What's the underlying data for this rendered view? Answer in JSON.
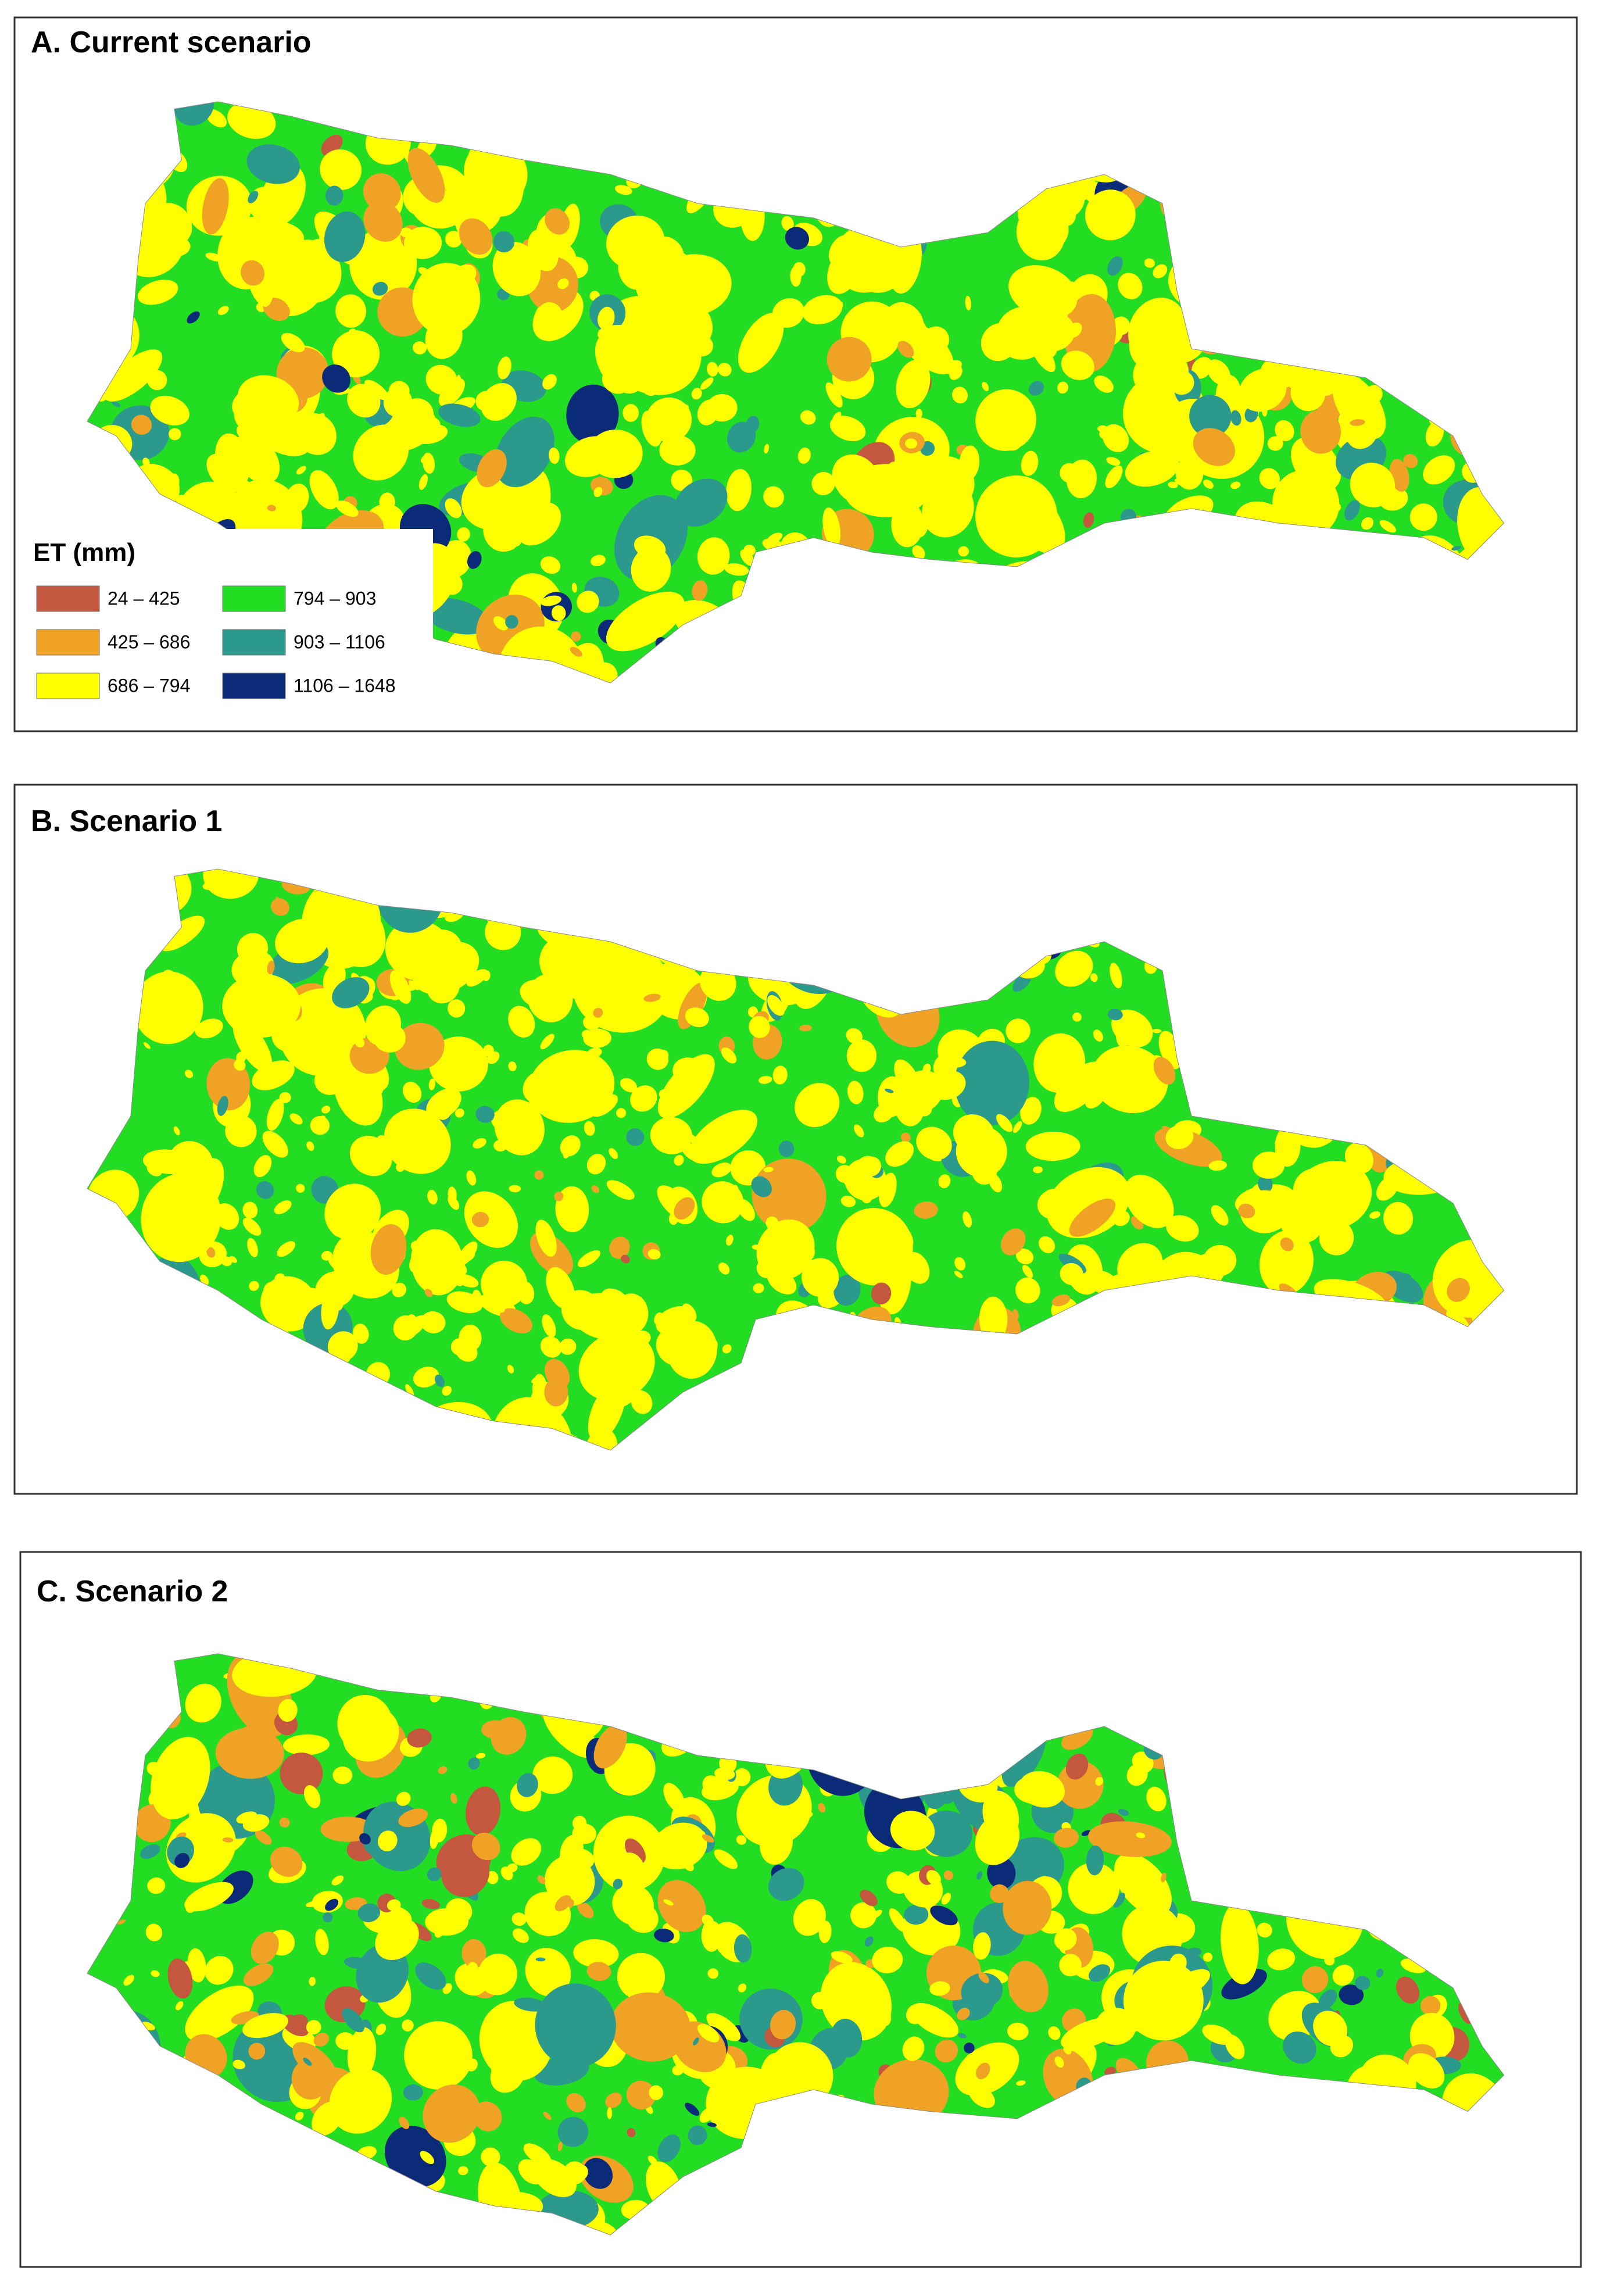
{
  "panels": [
    {
      "title": "A. Current scenario"
    },
    {
      "title": "B. Scenario 1"
    },
    {
      "title": "C. Scenario 2"
    }
  ],
  "legend": {
    "title": "ET (mm)",
    "items": [
      {
        "label": "24 – 425",
        "color": "#c4583e"
      },
      {
        "label": "425 – 686",
        "color": "#f0a224"
      },
      {
        "label": "686 – 794",
        "color": "#ffff00"
      },
      {
        "label": "794 – 903",
        "color": "#22dd22"
      },
      {
        "label": "903 – 1106",
        "color": "#2b9a8c"
      },
      {
        "label": "1106 – 1648",
        "color": "#0b2a78"
      }
    ]
  }
}
